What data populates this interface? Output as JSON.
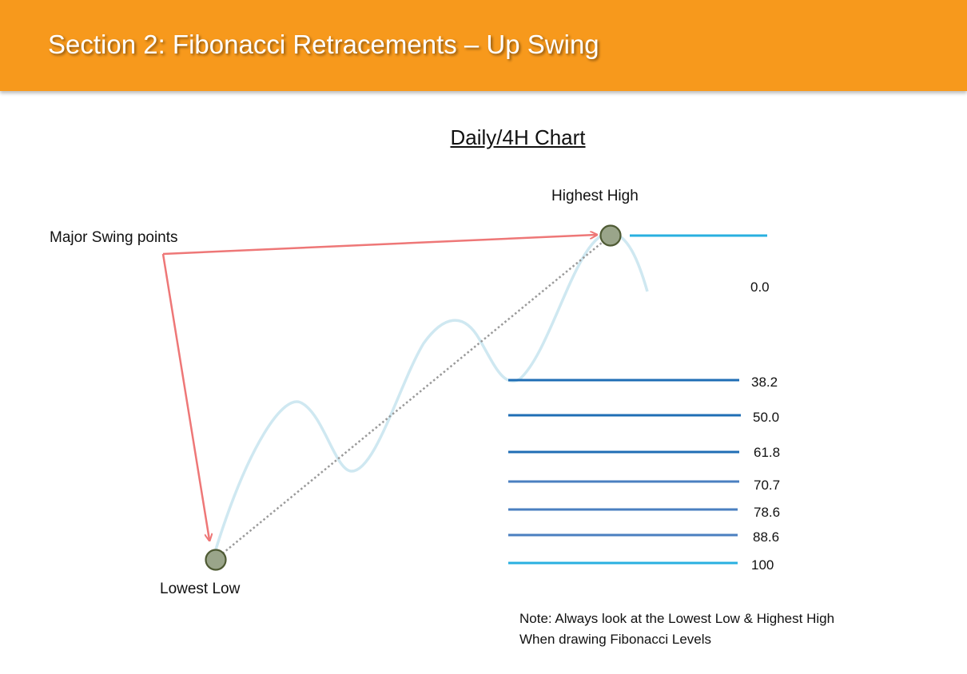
{
  "header": {
    "title": "Section 2: Fibonacci Retracements – Up Swing",
    "bg_color": "#f7991c"
  },
  "subtitle": "Daily/4H Chart",
  "labels": {
    "highest_high": "Highest High",
    "major_swing_points": "Major Swing points",
    "lowest_low": "Lowest Low"
  },
  "fib_levels": [
    {
      "label": "0.0",
      "color": "#29b0e0"
    },
    {
      "label": "38.2",
      "color": "#1f6eb5"
    },
    {
      "label": "50.0",
      "color": "#1f6eb5"
    },
    {
      "label": "61.8",
      "color": "#1f6eb5"
    },
    {
      "label": "70.7",
      "color": "#4a7fc0"
    },
    {
      "label": "78.6",
      "color": "#4a7fc0"
    },
    {
      "label": "88.6",
      "color": "#4a7fc0"
    },
    {
      "label": "100",
      "color": "#29b0e0"
    }
  ],
  "note": {
    "line1": "Note: Always look at the Lowest Low & Highest High",
    "line2": "When drawing Fibonacci Levels"
  },
  "colors": {
    "arrow": "#ee7777",
    "price_curve": "#cfe8f1",
    "swing_point_fill": "#9aa58a",
    "swing_point_stroke": "#4e5a33",
    "dotted_line": "#9a9a9a"
  }
}
